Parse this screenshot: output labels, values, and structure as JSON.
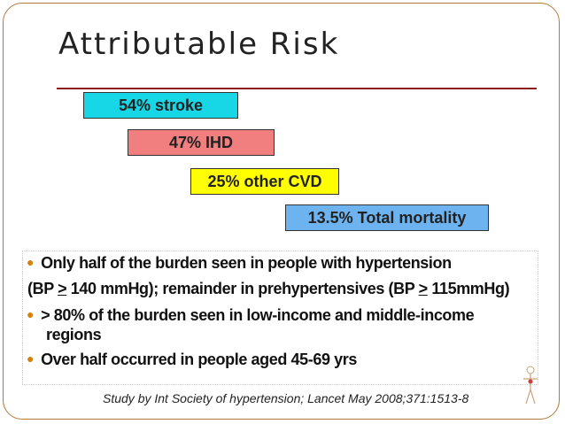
{
  "title": "Attributable Risk",
  "bars": {
    "stroke": "54% stroke",
    "ihd": "47% IHD",
    "cvd": "25% other CVD",
    "mortality": "13.5% Total mortality"
  },
  "bullets": {
    "b1": "Only half of the burden seen in people with hypertension",
    "b1_cont_a": "(BP ",
    "b1_cont_ge1": ">",
    "b1_cont_b": " 140 mmHg); remainder in prehypertensives (BP ",
    "b1_cont_ge2": ">",
    "b1_cont_c": " 115mmHg)",
    "b2_line1": "> 80% of the burden seen in low-income and middle-income",
    "b2_line2": "regions",
    "b3": "Over half occurred in people aged 45-69 yrs"
  },
  "footnote": "Study by Int Society of hypertension; Lancet May 2008;371:1513-8",
  "colors": {
    "stroke_bar": "#17d6e6",
    "ihd_bar": "#f27f7f",
    "cvd_bar": "#ffff00",
    "mortality_bar": "#6db3ef",
    "rule": "#8b1a1a",
    "bullet": "#d4820b"
  }
}
